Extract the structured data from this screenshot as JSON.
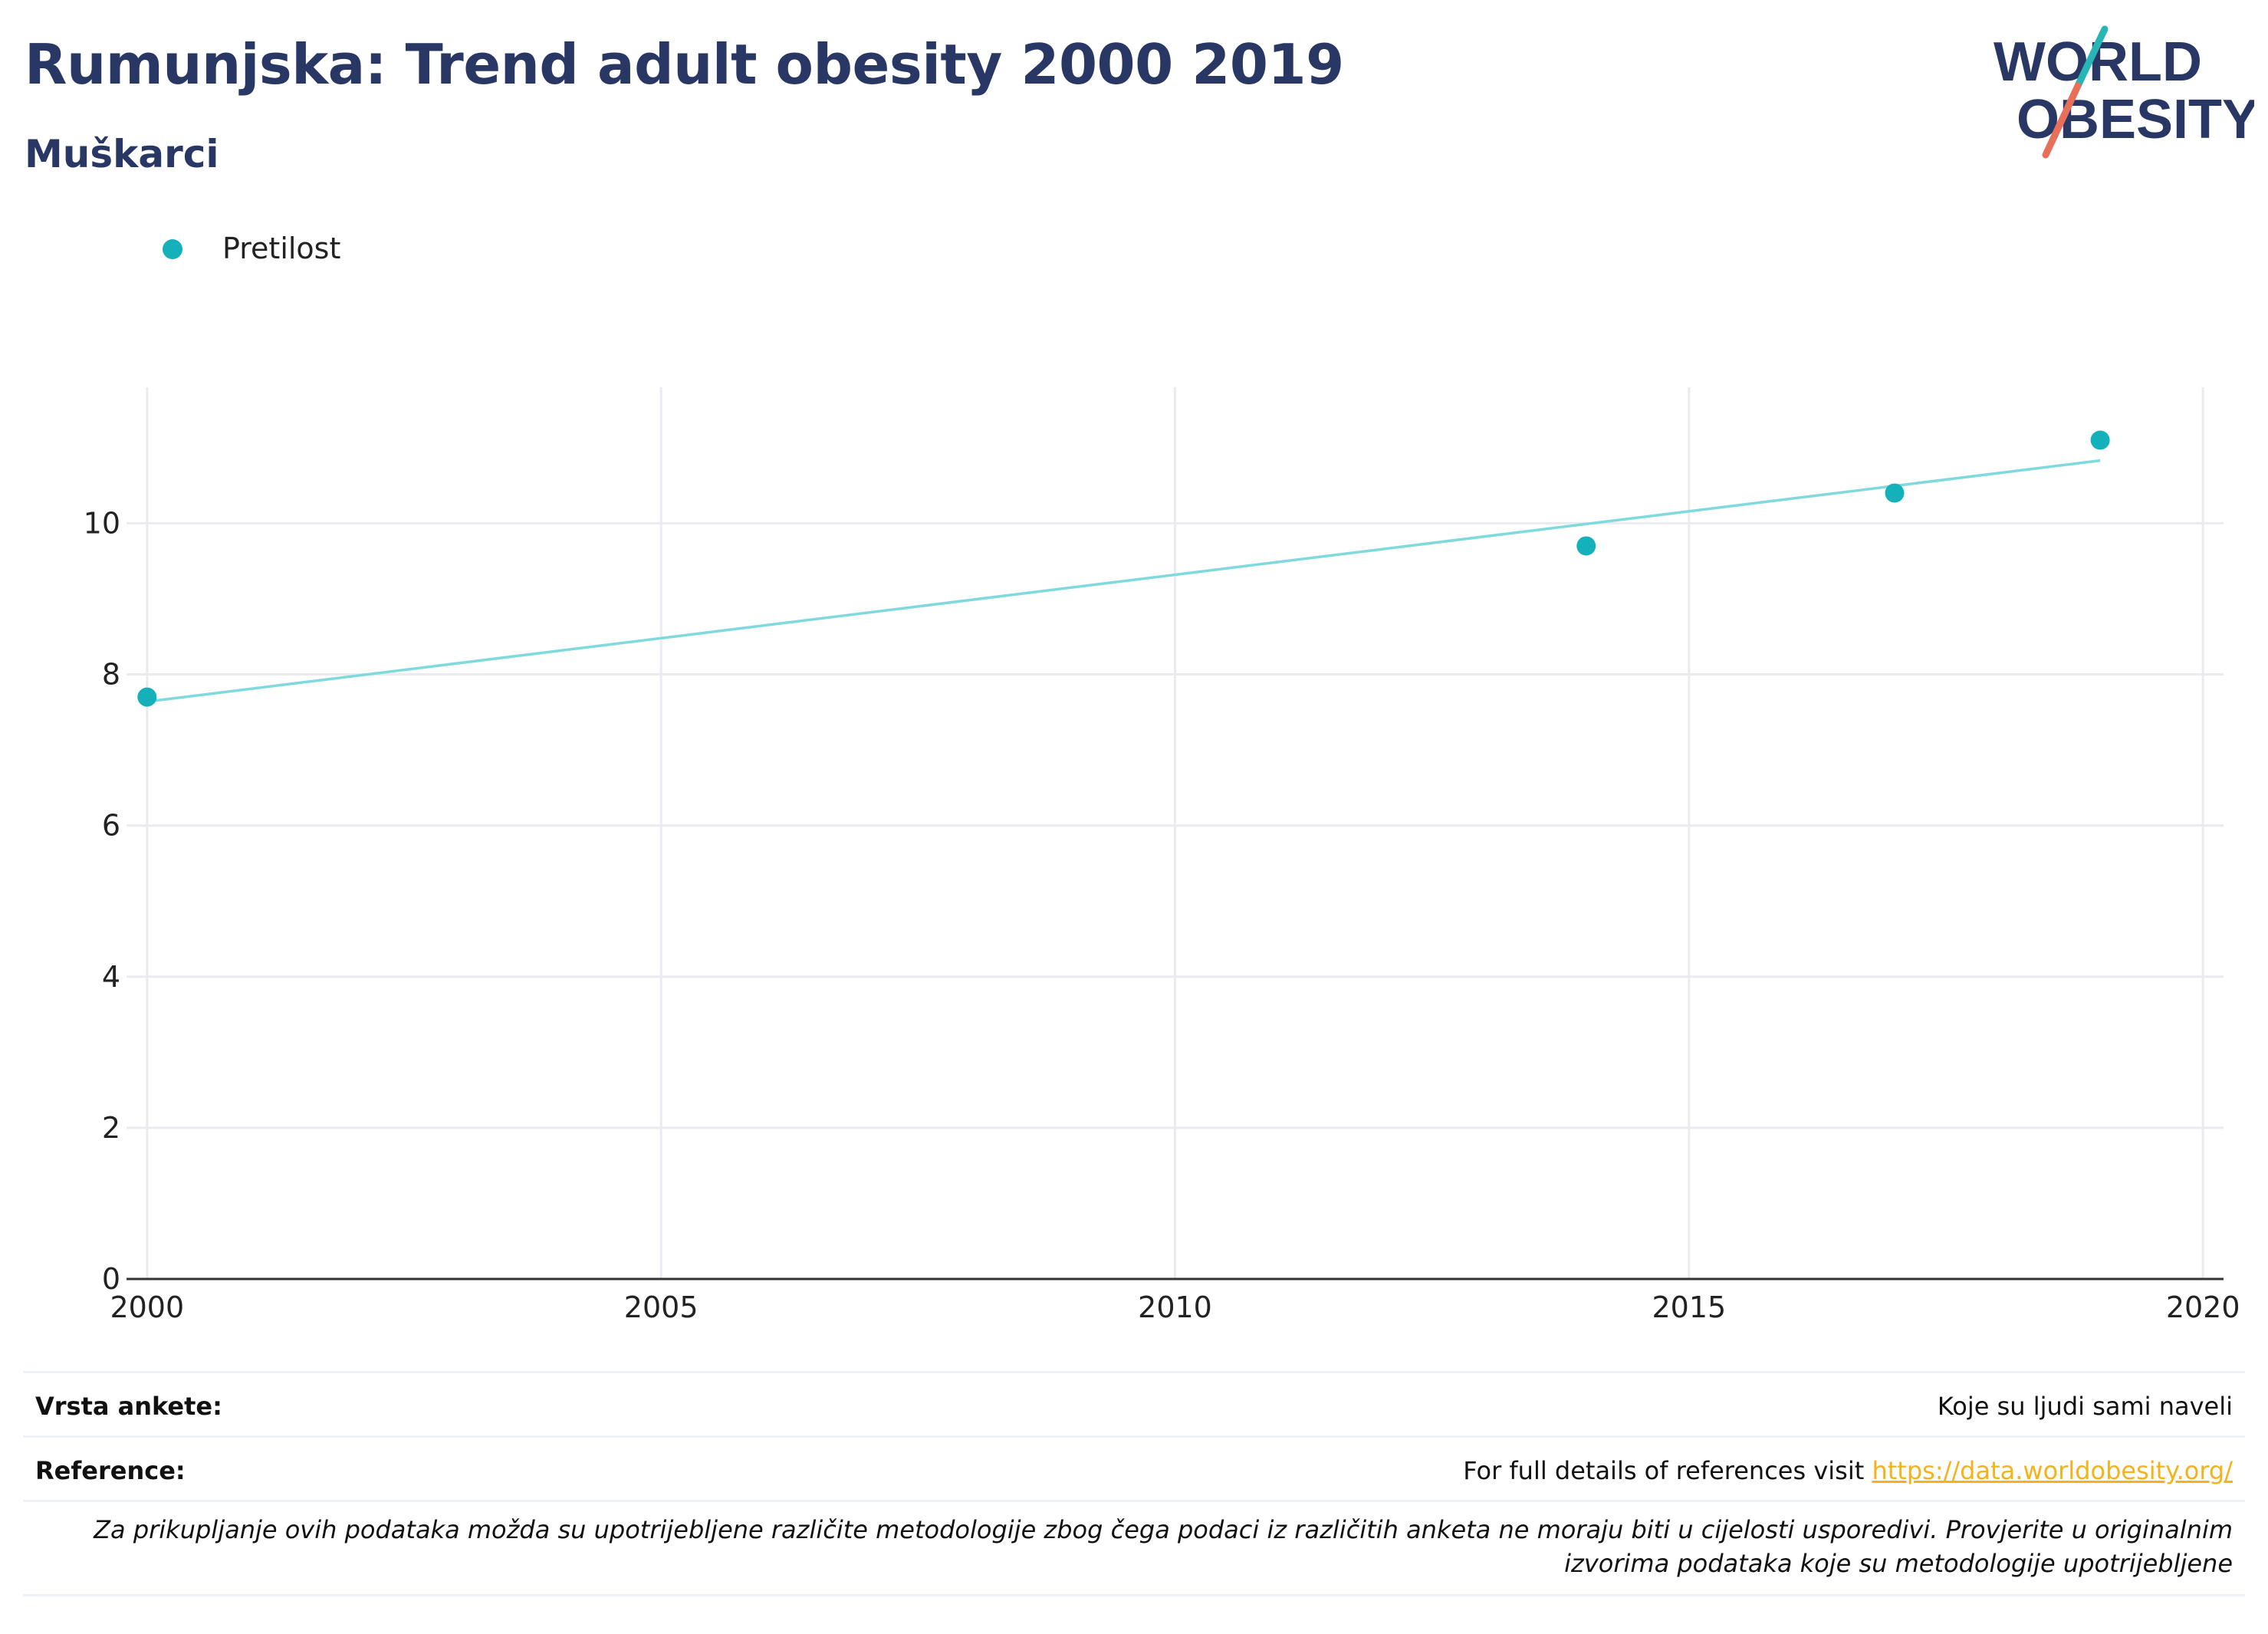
{
  "header": {
    "title": "Rumunjska: Trend adult obesity 2000 2019",
    "subtitle": "Muškarci"
  },
  "logo": {
    "line1": "WORLD",
    "line2": "OBESITY"
  },
  "colors": {
    "title": "#283764",
    "series": "#14b1bb",
    "trendline": "#7fd9dd",
    "grid": "#e9ebf0",
    "link": "#f5b21b",
    "logo_teal": "#28b5b5",
    "logo_coral": "#e8705a"
  },
  "chart_data": {
    "type": "scatter",
    "title": "Rumunjska: Trend adult obesity 2000 2019",
    "subtitle": "Muškarci",
    "xlabel": "",
    "ylabel": "",
    "xlim": [
      1999.8,
      2020.2
    ],
    "ylim": [
      0,
      11.8
    ],
    "x_ticks": [
      2000,
      2005,
      2010,
      2015,
      2020
    ],
    "y_ticks": [
      0,
      2,
      4,
      6,
      8,
      10
    ],
    "grid": true,
    "legend_position": "top-left",
    "series": [
      {
        "name": "Pretilost",
        "x": [
          2000,
          2014,
          2017,
          2019
        ],
        "y": [
          7.7,
          9.7,
          10.4,
          11.1
        ]
      }
    ],
    "trendline": {
      "x": [
        2000,
        2019
      ],
      "y": [
        7.64,
        10.83
      ]
    }
  },
  "footer": {
    "survey_label": "Vrsta ankete:",
    "survey_value": "Koje su ljudi sami naveli",
    "reference_label": "Reference:",
    "reference_text": "For full details of references visit ",
    "reference_link": "https://data.worldobesity.org/",
    "note": "Za prikupljanje ovih podataka možda su upotrijebljene različite metodologije zbog čega podaci iz različitih anketa ne moraju biti u cijelosti usporedivi. Provjerite u originalnim izvorima podataka koje su metodologije upotrijebljene"
  }
}
